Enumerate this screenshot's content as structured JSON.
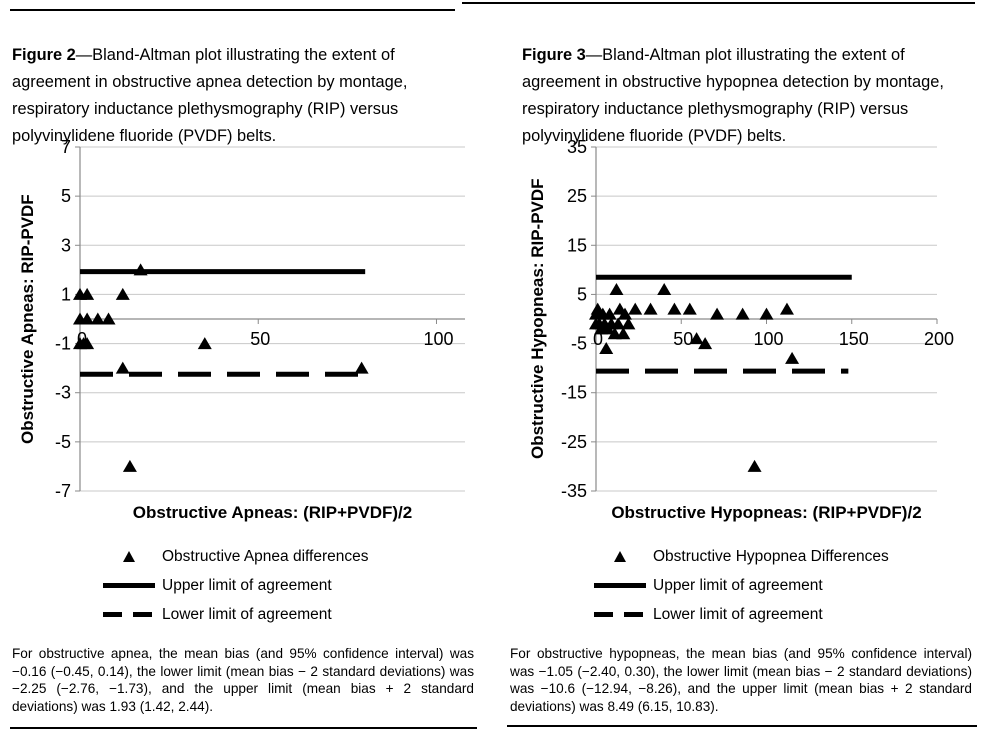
{
  "page": {
    "background": "#ffffff",
    "text_color": "#000000"
  },
  "colors": {
    "gridline": "#c8c8c8",
    "axis": "#8a8a8a",
    "data": "#000000"
  },
  "left_panel": {
    "caption": {
      "label": "Figure 2",
      "rest": "—Bland-Altman plot illustrating the extent of agreement in obstructive apnea detection by montage, respiratory inductance plethysmography (RIP) versus polyvinylidene fluoride (PVDF) belts."
    },
    "legend": [
      "Obstructive Apnea differences",
      "Upper limit of agreement",
      "Lower limit of agreement"
    ],
    "footnote": "For obstructive apnea, the mean bias (and 95% confidence interval) was −0.16 (−0.45, 0.14), the lower limit (mean bias − 2 standard deviations) was −2.25 (−2.76, −1.73), and the upper limit (mean bias + 2 standard deviations) was 1.93 (1.42, 2.44)."
  },
  "right_panel": {
    "caption": {
      "label": "Figure 3",
      "rest": "—Bland-Altman plot illustrating the extent of agreement in obstructive hypopnea detection by montage, respiratory inductance plethysmography (RIP) versus polyvinylidene fluoride (PVDF) belts."
    },
    "legend": [
      "Obstructive Hypopnea Differences",
      "Upper limit of agreement",
      "Lower limit of agreement"
    ],
    "footnote": "For obstructive hypopneas, the mean bias (and 95% confidence interval) was −1.05 (−2.40, 0.30), the lower limit (mean bias − 2 standard deviations) was −10.6 (−12.94, −8.26), and the upper limit (mean bias + 2 standard deviations) was 8.49 (6.15, 10.83)."
  },
  "chart_data": [
    {
      "type": "scatter",
      "title": "",
      "xlabel": "Obstructive Apneas: (RIP+PVDF)/2",
      "ylabel": "Obstructive Apneas: RIP-PVDF",
      "xlim": [
        0,
        108
      ],
      "ylim": [
        -7,
        7
      ],
      "xticks": [
        0,
        50,
        100
      ],
      "yticks": [
        7,
        5,
        3,
        1,
        -1,
        -3,
        -5,
        -7
      ],
      "grid": "horizontal",
      "legend_position": "bottom",
      "series": [
        {
          "name": "Obstructive Apnea differences",
          "kind": "scatter",
          "marker": "filled-triangle-up",
          "color": "#000000",
          "points": [
            [
              17,
              2
            ],
            [
              0,
              1
            ],
            [
              2,
              1
            ],
            [
              12,
              1
            ],
            [
              0,
              0
            ],
            [
              2,
              0
            ],
            [
              5,
              0
            ],
            [
              8,
              0
            ],
            [
              0,
              -1
            ],
            [
              1,
              -1
            ],
            [
              2,
              -1
            ],
            [
              35,
              -1
            ],
            [
              12,
              -2
            ],
            [
              79,
              -2
            ],
            [
              14,
              -6
            ]
          ]
        },
        {
          "name": "Upper limit of agreement",
          "kind": "hline",
          "style": "solid",
          "color": "#000000",
          "y": 1.93,
          "x_range": [
            0,
            80
          ]
        },
        {
          "name": "Lower limit of agreement",
          "kind": "hline",
          "style": "dashed",
          "color": "#000000",
          "y": -2.25,
          "x_range": [
            0,
            80
          ]
        }
      ],
      "stats": {
        "mean_bias": -0.16,
        "mean_bias_ci": [
          -0.45,
          0.14
        ],
        "lower_limit": -2.25,
        "lower_limit_ci": [
          -2.76,
          -1.73
        ],
        "upper_limit": 1.93,
        "upper_limit_ci": [
          1.42,
          2.44
        ]
      }
    },
    {
      "type": "scatter",
      "title": "",
      "xlabel": "Obstructive Hypopneas: (RIP+PVDF)/2",
      "ylabel": "Obstructive Hypopneas: RIP-PVDF",
      "xlim": [
        0,
        200
      ],
      "ylim": [
        -35,
        35
      ],
      "xticks": [
        0,
        50,
        100,
        150,
        200
      ],
      "yticks": [
        35,
        25,
        15,
        5,
        -5,
        -15,
        -25,
        -35
      ],
      "grid": "horizontal",
      "legend_position": "bottom",
      "series": [
        {
          "name": "Obstructive Hypopnea Differences",
          "kind": "scatter",
          "marker": "filled-triangle-up",
          "color": "#000000",
          "points": [
            [
              12,
              6
            ],
            [
              40,
              6
            ],
            [
              1,
              2
            ],
            [
              14,
              2
            ],
            [
              23,
              2
            ],
            [
              32,
              2
            ],
            [
              46,
              2
            ],
            [
              55,
              2
            ],
            [
              71,
              1
            ],
            [
              112,
              2
            ],
            [
              0,
              1
            ],
            [
              4,
              1
            ],
            [
              8,
              1
            ],
            [
              17,
              1
            ],
            [
              86,
              1
            ],
            [
              100,
              1
            ],
            [
              0,
              -1
            ],
            [
              2,
              -1
            ],
            [
              5,
              -1
            ],
            [
              9,
              -1
            ],
            [
              13,
              -1
            ],
            [
              19,
              -1
            ],
            [
              3,
              -2
            ],
            [
              7,
              -2
            ],
            [
              11,
              -3
            ],
            [
              16,
              -3
            ],
            [
              59,
              -4
            ],
            [
              64,
              -5
            ],
            [
              6,
              -6
            ],
            [
              115,
              -8
            ],
            [
              93,
              -30
            ]
          ]
        },
        {
          "name": "Upper limit of agreement",
          "kind": "hline",
          "style": "solid",
          "color": "#000000",
          "y": 8.49,
          "x_range": [
            0,
            150
          ]
        },
        {
          "name": "Lower limit of agreement",
          "kind": "hline",
          "style": "dashed",
          "color": "#000000",
          "y": -10.6,
          "x_range": [
            0,
            148
          ]
        }
      ],
      "stats": {
        "mean_bias": -1.05,
        "mean_bias_ci": [
          -2.4,
          0.3
        ],
        "lower_limit": -10.6,
        "lower_limit_ci": [
          -12.94,
          -8.26
        ],
        "upper_limit": 8.49,
        "upper_limit_ci": [
          6.15,
          10.83
        ]
      }
    }
  ]
}
